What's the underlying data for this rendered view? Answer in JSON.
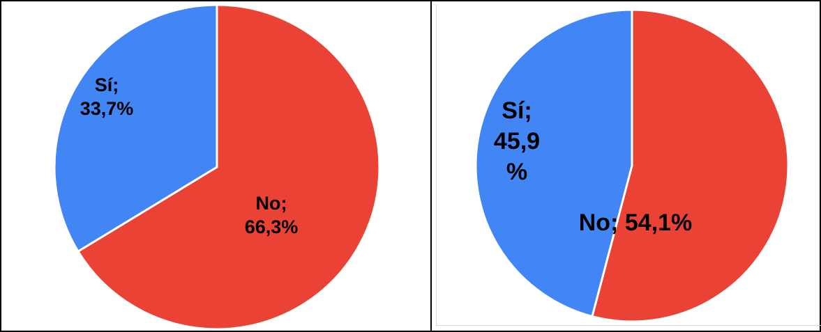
{
  "chart_data": [
    {
      "type": "pie",
      "slices": [
        {
          "name": "No",
          "value": 66.3,
          "label": "No; 66,3%",
          "color": "#EA4335"
        },
        {
          "name": "Sí",
          "value": 33.7,
          "label": "Sí; 33,7%",
          "color": "#4285F4"
        }
      ],
      "start": "top",
      "direction": "clockwise",
      "legend": "none"
    },
    {
      "type": "pie",
      "slices": [
        {
          "name": "No",
          "value": 54.1,
          "label": "No; 54,1%",
          "color": "#EA4335"
        },
        {
          "name": "Sí",
          "value": 45.9,
          "label": "Sí; 45,9 %",
          "color": "#4285F4"
        }
      ],
      "start": "top",
      "direction": "clockwise",
      "legend": "none"
    }
  ]
}
